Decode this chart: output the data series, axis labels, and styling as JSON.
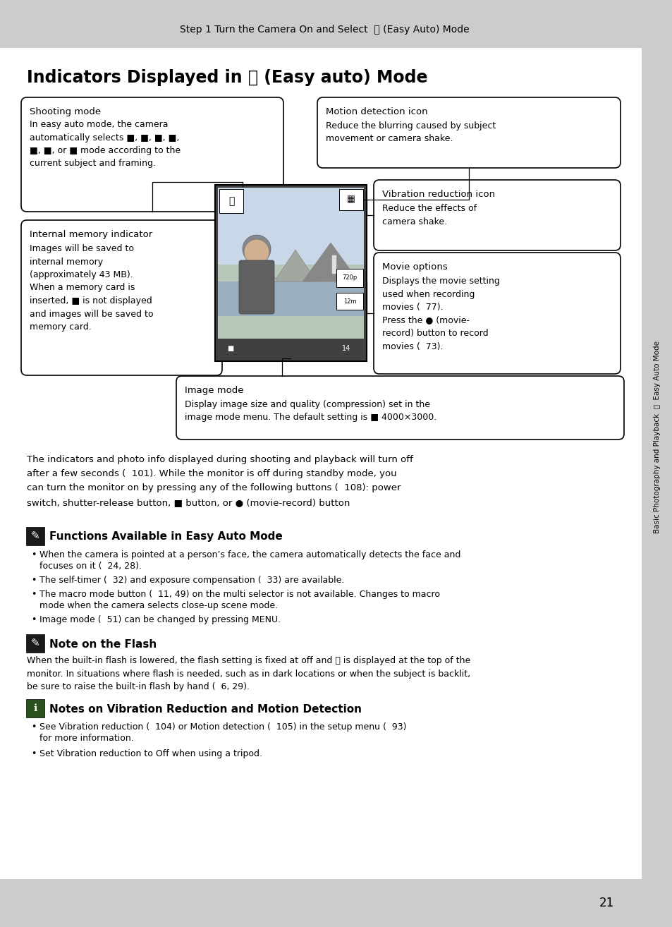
{
  "bg_color": "#cccccc",
  "page_bg": "#ffffff",
  "header_text": "Step 1 Turn the Camera On and Select  ⓢ (Easy Auto) Mode",
  "title": "Indicators Displayed in ⓢ (Easy auto) Mode",
  "sidebar_text": "Basic Photography and Playback  ⓢ  Easy Auto Mode",
  "page_number": "21",
  "box1_title": "Shooting mode",
  "box1_body": "In easy auto mode, the camera\nautomatically selects ■, ■, ■, ■,\n■, ■, or ■ mode according to the\ncurrent subject and framing.",
  "box2_title": "Internal memory indicator",
  "box2_body": "Images will be saved to\ninternal memory\n(approximately 43 MB).\nWhen a memory card is\ninserted, ■ is not displayed\nand images will be saved to\nmemory card.",
  "box3_title": "Motion detection icon",
  "box3_body": "Reduce the blurring caused by subject\nmovement or camera shake.",
  "box4_title": "Vibration reduction icon",
  "box4_body": "Reduce the effects of\ncamera shake.",
  "box5_title": "Movie options",
  "box5_body": "Displays the movie setting\nused when recording\nmovies (  77).\nPress the ● (movie-\nrecord) button to record\nmovies (  73).",
  "box6_title": "Image mode",
  "box6_body": "Display image size and quality (compression) set in the\nimage mode menu. The default setting is ■ 4000×3000.",
  "para1": "The indicators and photo info displayed during shooting and playback will turn off\nafter a few seconds (  101). While the monitor is off during standby mode, you\ncan turn the monitor on by pressing any of the following buttons (  108): power\nswitch, shutter-release button, ■ button, or ● (movie-record) button",
  "section1_title": "Functions Available in Easy Auto Mode",
  "bullet1a": "When the camera is pointed at a person’s face, the camera automatically detects the face and",
  "bullet1b": "focuses on it (  24, 28).",
  "bullet2": "The self-timer (  32) and exposure compensation (  33) are available.",
  "bullet3a": "The macro mode button (  11, 49) on the multi selector is not available. Changes to macro",
  "bullet3b": "mode when the camera selects close-up scene mode.",
  "bullet4": "Image mode (  51) can be changed by pressing MENU.",
  "section2_title": "Note on the Flash",
  "section2_body": "When the built-in flash is lowered, the flash setting is fixed at off and ⓢ is displayed at the top of the\nmonitor. In situations where flash is needed, such as in dark locations or when the subject is backlit,\nbe sure to raise the built-in flash by hand (  6, 29).",
  "section3_title": "Notes on Vibration Reduction and Motion Detection",
  "section3_b1a": "See Vibration reduction (  104) or Motion detection (  105) in the setup menu (  93)",
  "section3_b1b": "for more information.",
  "section3_b2": "Set Vibration reduction to Off when using a tripod."
}
